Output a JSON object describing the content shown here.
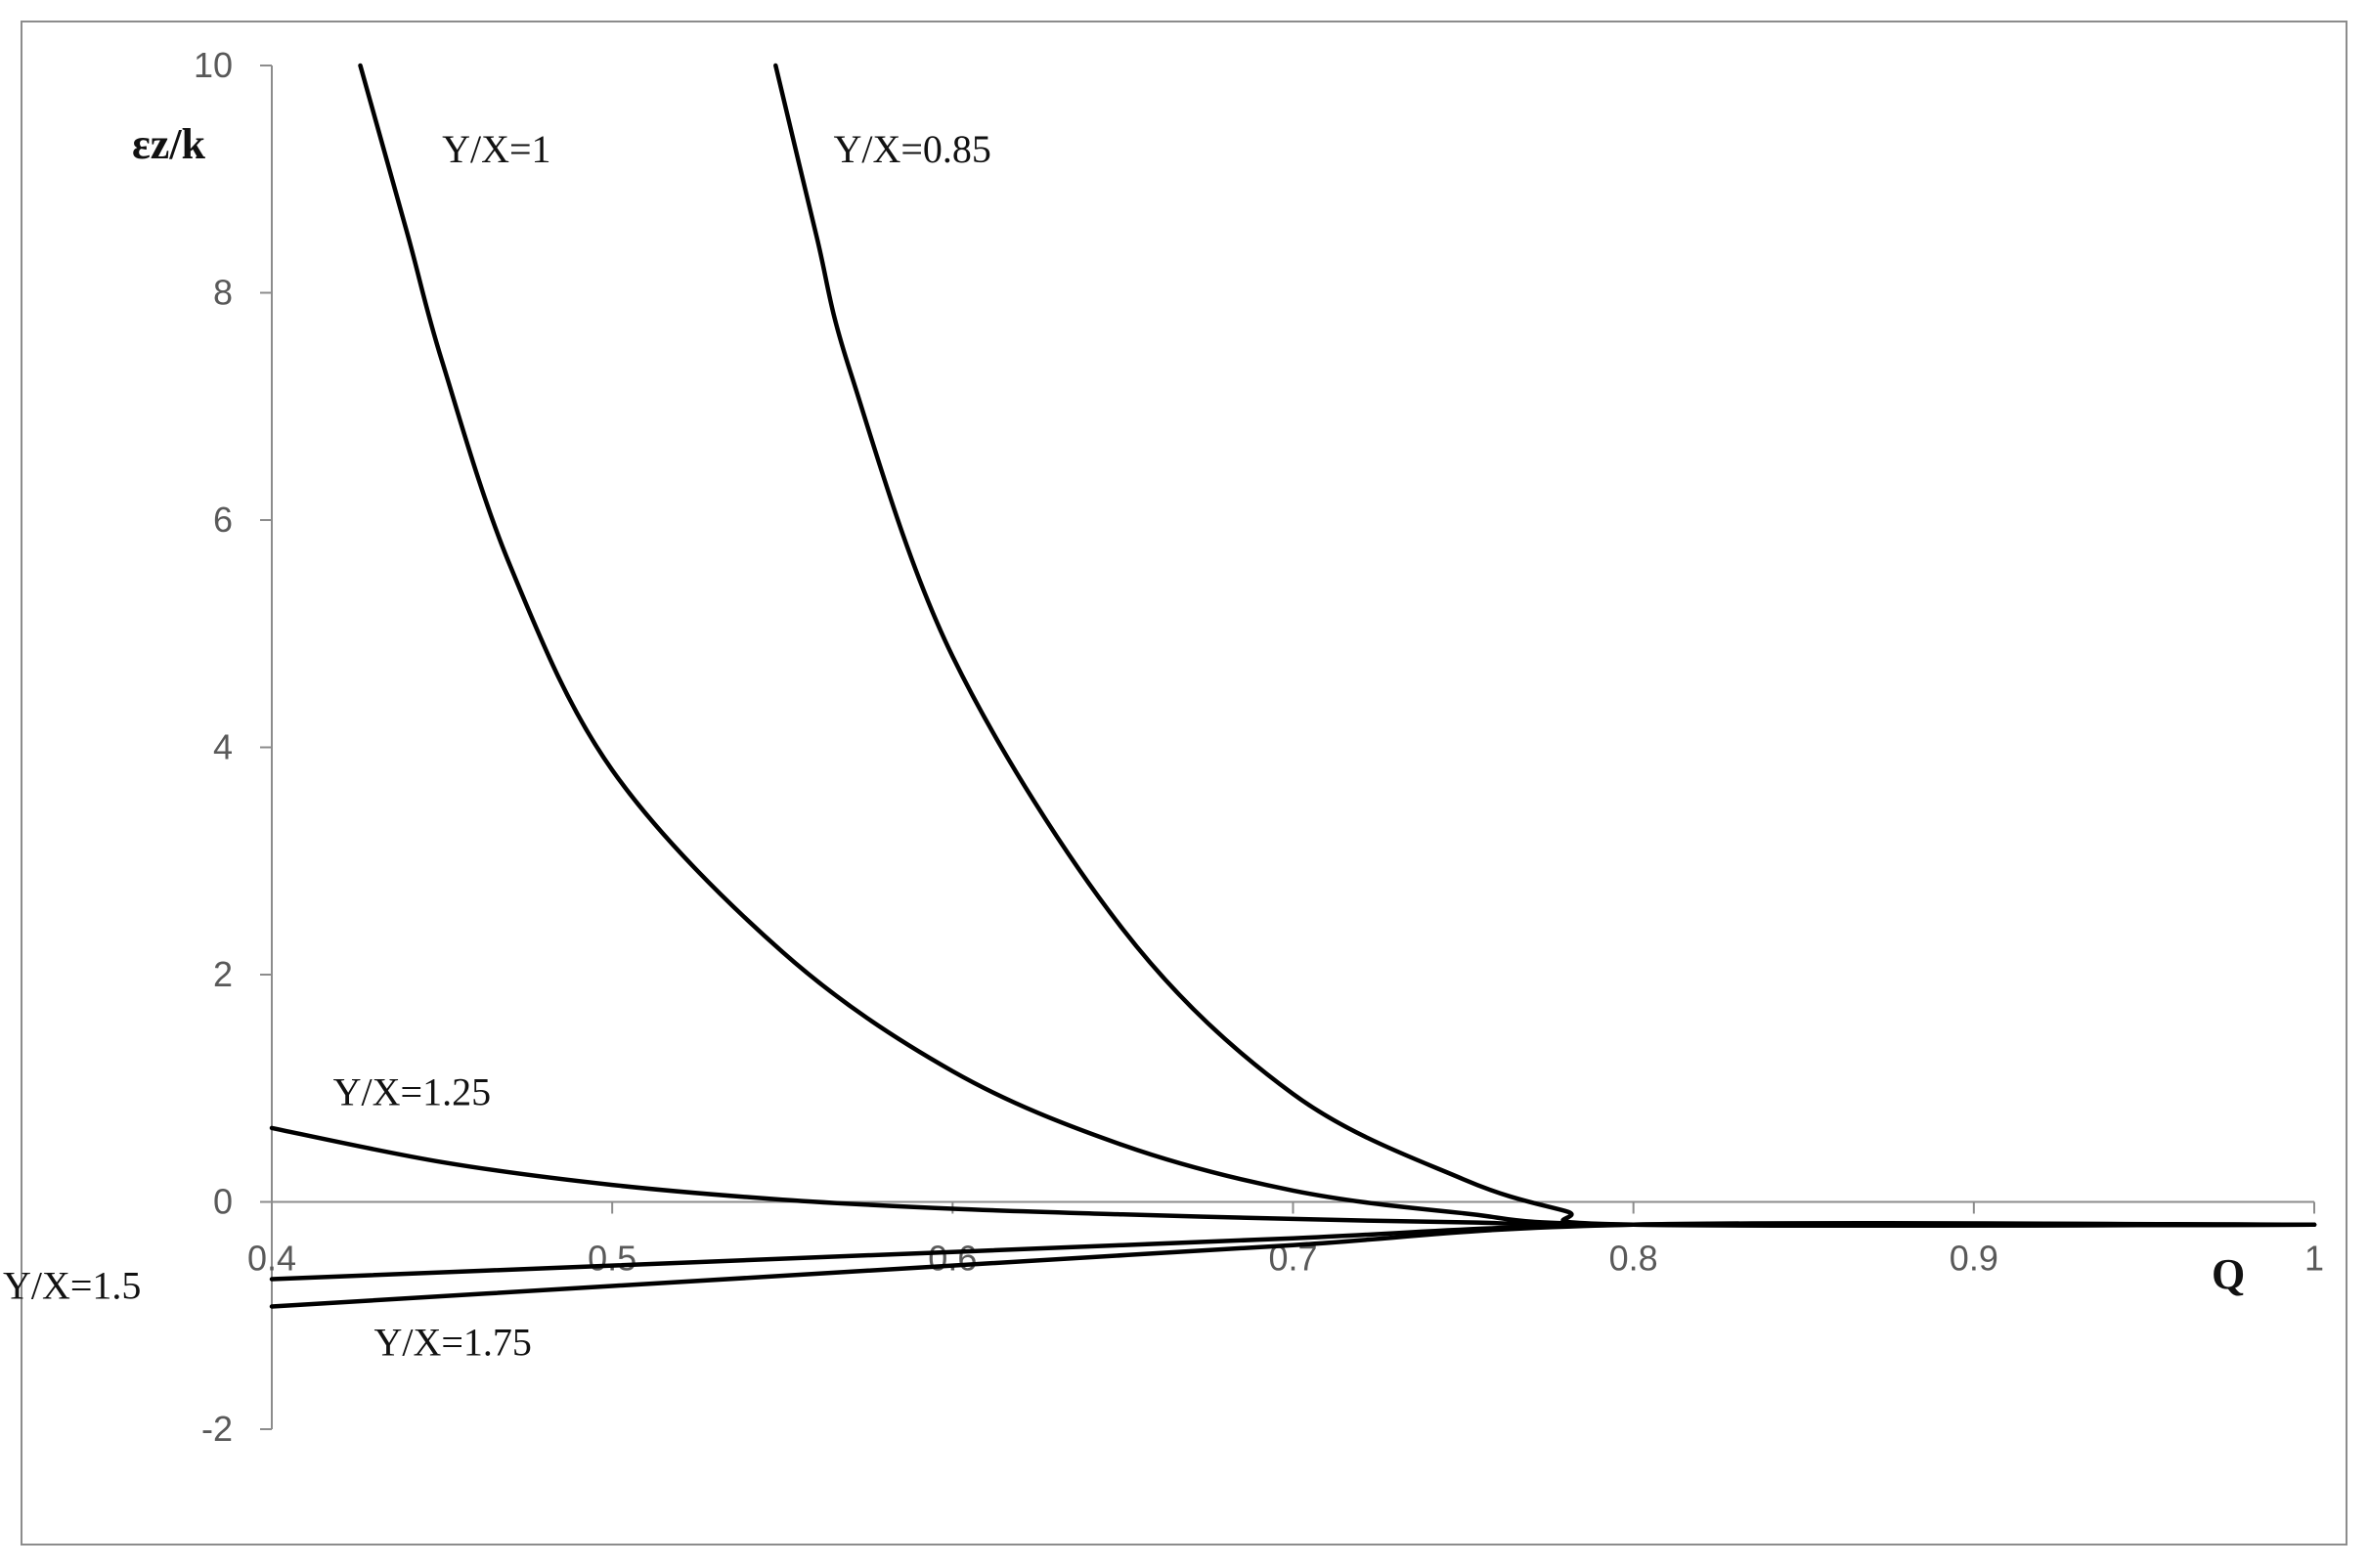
{
  "chart_data": {
    "type": "line",
    "title": "",
    "xlabel": "Q",
    "ylabel": "εz/k",
    "xlim": [
      0.4,
      1.0
    ],
    "ylim": [
      -2,
      10
    ],
    "x_ticks": [
      0.4,
      0.5,
      0.6,
      0.7,
      0.8,
      0.9,
      1.0
    ],
    "x_tick_labels": [
      "0.4",
      "0.5",
      "0.6",
      "0.7",
      "0.8",
      "0.9",
      "1"
    ],
    "y_ticks": [
      -2,
      0,
      2,
      4,
      6,
      8,
      10
    ],
    "y_tick_labels": [
      "-2",
      "0",
      "2",
      "4",
      "6",
      "8",
      "10"
    ],
    "grid": false,
    "legend": "none",
    "series": [
      {
        "name": "Y/X=1",
        "points": [
          [
            0.426,
            10.0
          ],
          [
            0.44,
            8.5
          ],
          [
            0.45,
            7.4
          ],
          [
            0.47,
            5.6
          ],
          [
            0.5,
            3.8
          ],
          [
            0.55,
            2.2
          ],
          [
            0.6,
            1.15
          ],
          [
            0.65,
            0.5
          ],
          [
            0.7,
            0.1
          ],
          [
            0.75,
            -0.1
          ],
          [
            0.8,
            -0.2
          ],
          [
            1.0,
            -0.2
          ]
        ]
      },
      {
        "name": "Y/X=0.85",
        "points": [
          [
            0.548,
            10.0
          ],
          [
            0.56,
            8.5
          ],
          [
            0.57,
            7.3
          ],
          [
            0.6,
            4.8
          ],
          [
            0.65,
            2.4
          ],
          [
            0.7,
            0.95
          ],
          [
            0.75,
            0.2
          ],
          [
            0.78,
            -0.08
          ],
          [
            0.8,
            -0.2
          ],
          [
            1.0,
            -0.2
          ]
        ]
      },
      {
        "name": "Y/X=1.25",
        "points": [
          [
            0.4,
            0.65
          ],
          [
            0.45,
            0.35
          ],
          [
            0.5,
            0.15
          ],
          [
            0.55,
            0.02
          ],
          [
            0.6,
            -0.06
          ],
          [
            0.65,
            -0.11
          ],
          [
            0.7,
            -0.15
          ],
          [
            0.75,
            -0.18
          ],
          [
            0.8,
            -0.2
          ],
          [
            1.0,
            -0.2
          ]
        ]
      },
      {
        "name": "Y/X=1.5",
        "points": [
          [
            0.4,
            -0.68
          ],
          [
            0.5,
            -0.56
          ],
          [
            0.6,
            -0.44
          ],
          [
            0.7,
            -0.32
          ],
          [
            0.8,
            -0.2
          ],
          [
            1.0,
            -0.2
          ]
        ]
      },
      {
        "name": "Y/X=1.75",
        "points": [
          [
            0.4,
            -0.92
          ],
          [
            0.5,
            -0.74
          ],
          [
            0.6,
            -0.56
          ],
          [
            0.7,
            -0.38
          ],
          [
            0.8,
            -0.2
          ],
          [
            1.0,
            -0.2
          ]
        ]
      }
    ],
    "annotations": [
      {
        "series": "Y/X=1",
        "text": "Y/X=1",
        "x": 0.45,
        "y": 9.15
      },
      {
        "series": "Y/X=0.85",
        "text": "Y/X=0.85",
        "x": 0.565,
        "y": 9.15
      },
      {
        "series": "Y/X=1.25",
        "text": "Y/X=1.25",
        "x": 0.418,
        "y": 0.85
      },
      {
        "series": "Y/X=1.5",
        "text": "Y/X=1.5",
        "x": 0.321,
        "y": -0.85
      },
      {
        "series": "Y/X=1.75",
        "text": "Y/X=1.75",
        "x": 0.43,
        "y": -1.35
      }
    ]
  }
}
